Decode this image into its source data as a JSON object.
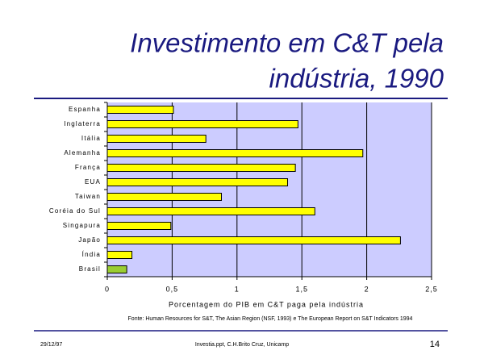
{
  "chart_data": {
    "type": "hbar",
    "title": [
      "Investimento em C&T pela",
      "indústria, 1990"
    ],
    "categories": [
      "Espanha",
      "Inglaterra",
      "Itália",
      "Alemanha",
      "França",
      "EUA",
      "Taiwan",
      "Coréia do Sul",
      "Singapura",
      "Japão",
      "Índia",
      "Brasil"
    ],
    "values": [
      0.51,
      1.47,
      0.76,
      1.97,
      1.45,
      1.39,
      0.88,
      1.6,
      0.49,
      2.26,
      0.19,
      0.15
    ],
    "colors": [
      "#ffff00",
      "#ffff00",
      "#ffff00",
      "#ffff00",
      "#ffff00",
      "#ffff00",
      "#ffff00",
      "#ffff00",
      "#ffff00",
      "#ffff00",
      "#ffff00",
      "#9acd32"
    ],
    "xlim": [
      0,
      2.5
    ],
    "xticks": [
      0,
      {
        "value": 0.5,
        "label": "0,5"
      },
      1,
      {
        "value": 1.5,
        "label": "1,5"
      },
      2,
      {
        "value": 2.5,
        "label": "2,5"
      }
    ],
    "xlabel": "Porcentagem do PIB em C&T paga pela indústria",
    "source": "Fonte: Human Resources for S&T, The Asian Region (NSF, 1993) e The European Report on S&T Indicators 1994",
    "grid": true
  },
  "footer": {
    "date": "29/12/97",
    "file": "Investia.ppt, C.H.Brito Cruz, Unicamp",
    "page": "14"
  }
}
